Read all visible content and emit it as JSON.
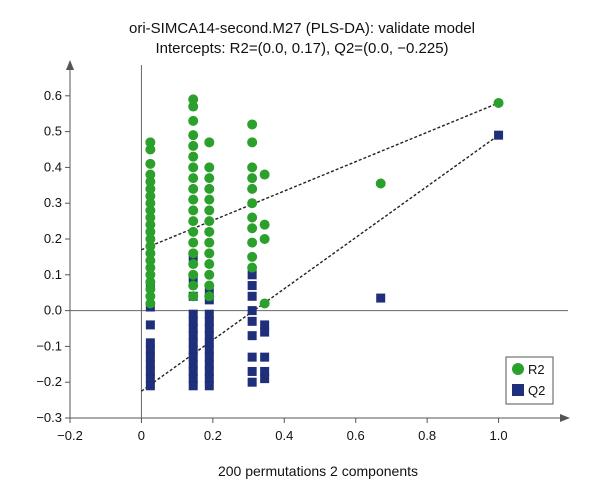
{
  "chart_data": {
    "type": "scatter",
    "title": "ori-SIMCA14-second.M27 (PLS-DA): validate model",
    "subtitle": "Intercepts: R2=(0.0, 0.17), Q2=(0.0, −0.225)",
    "xlabel": "200 permutations 2 components",
    "ylabel": "",
    "xlim": [
      -0.2,
      1.2
    ],
    "ylim": [
      -0.3,
      0.7
    ],
    "x_ticks": [
      -0.2,
      0,
      0.2,
      0.4,
      0.6,
      0.8,
      1.0
    ],
    "x_tick_labels": [
      "−0.2",
      "0",
      "0.2",
      "0.4",
      "0.6",
      "0.8",
      "1.0"
    ],
    "y_ticks": [
      -0.3,
      -0.2,
      -0.1,
      0.0,
      0.1,
      0.2,
      0.3,
      0.4,
      0.5,
      0.6
    ],
    "y_tick_labels": [
      "−0.3",
      "−0.2",
      "−0.1",
      "0.0",
      "0.1",
      "0.2",
      "0.3",
      "0.4",
      "0.5",
      "0.6"
    ],
    "legend_position": "bottom-right",
    "series": [
      {
        "name": "R2",
        "color": "#2ca02c",
        "marker": "circle",
        "points": [
          [
            0.025,
            0.47
          ],
          [
            0.025,
            0.45
          ],
          [
            0.025,
            0.41
          ],
          [
            0.025,
            0.38
          ],
          [
            0.025,
            0.36
          ],
          [
            0.025,
            0.34
          ],
          [
            0.025,
            0.32
          ],
          [
            0.025,
            0.3
          ],
          [
            0.025,
            0.28
          ],
          [
            0.025,
            0.26
          ],
          [
            0.025,
            0.24
          ],
          [
            0.025,
            0.22
          ],
          [
            0.025,
            0.2
          ],
          [
            0.025,
            0.18
          ],
          [
            0.025,
            0.16
          ],
          [
            0.025,
            0.14
          ],
          [
            0.025,
            0.12
          ],
          [
            0.025,
            0.1
          ],
          [
            0.025,
            0.08
          ],
          [
            0.025,
            0.06
          ],
          [
            0.025,
            0.04
          ],
          [
            0.025,
            0.02
          ],
          [
            0.145,
            0.59
          ],
          [
            0.145,
            0.57
          ],
          [
            0.145,
            0.53
          ],
          [
            0.145,
            0.49
          ],
          [
            0.145,
            0.46
          ],
          [
            0.145,
            0.43
          ],
          [
            0.145,
            0.4
          ],
          [
            0.145,
            0.37
          ],
          [
            0.145,
            0.34
          ],
          [
            0.145,
            0.31
          ],
          [
            0.145,
            0.28
          ],
          [
            0.145,
            0.25
          ],
          [
            0.145,
            0.22
          ],
          [
            0.145,
            0.19
          ],
          [
            0.145,
            0.16
          ],
          [
            0.145,
            0.13
          ],
          [
            0.145,
            0.1
          ],
          [
            0.145,
            0.07
          ],
          [
            0.145,
            0.04
          ],
          [
            0.19,
            0.47
          ],
          [
            0.19,
            0.4
          ],
          [
            0.19,
            0.37
          ],
          [
            0.19,
            0.34
          ],
          [
            0.19,
            0.31
          ],
          [
            0.19,
            0.28
          ],
          [
            0.19,
            0.25
          ],
          [
            0.19,
            0.22
          ],
          [
            0.19,
            0.19
          ],
          [
            0.19,
            0.16
          ],
          [
            0.19,
            0.13
          ],
          [
            0.19,
            0.1
          ],
          [
            0.19,
            0.07
          ],
          [
            0.19,
            0.04
          ],
          [
            0.31,
            0.52
          ],
          [
            0.31,
            0.47
          ],
          [
            0.31,
            0.4
          ],
          [
            0.31,
            0.37
          ],
          [
            0.31,
            0.34
          ],
          [
            0.31,
            0.3
          ],
          [
            0.31,
            0.26
          ],
          [
            0.31,
            0.23
          ],
          [
            0.31,
            0.19
          ],
          [
            0.31,
            0.15
          ],
          [
            0.31,
            0.12
          ],
          [
            0.345,
            0.38
          ],
          [
            0.345,
            0.24
          ],
          [
            0.345,
            0.2
          ],
          [
            0.345,
            0.02
          ],
          [
            0.67,
            0.355
          ],
          [
            1.0,
            0.58
          ]
        ]
      },
      {
        "name": "Q2",
        "color": "#1f2f7a",
        "marker": "square",
        "points": [
          [
            0.025,
            0.07
          ],
          [
            0.025,
            0.01
          ],
          [
            0.025,
            -0.04
          ],
          [
            0.025,
            -0.09
          ],
          [
            0.025,
            -0.11
          ],
          [
            0.025,
            -0.13
          ],
          [
            0.025,
            -0.15
          ],
          [
            0.025,
            -0.17
          ],
          [
            0.025,
            -0.19
          ],
          [
            0.025,
            -0.21
          ],
          [
            0.145,
            0.15
          ],
          [
            0.145,
            0.09
          ],
          [
            0.145,
            0.04
          ],
          [
            0.145,
            -0.01
          ],
          [
            0.145,
            -0.03
          ],
          [
            0.145,
            -0.05
          ],
          [
            0.145,
            -0.07
          ],
          [
            0.145,
            -0.09
          ],
          [
            0.145,
            -0.11
          ],
          [
            0.145,
            -0.13
          ],
          [
            0.145,
            -0.15
          ],
          [
            0.145,
            -0.17
          ],
          [
            0.145,
            -0.19
          ],
          [
            0.145,
            -0.21
          ],
          [
            0.19,
            0.05
          ],
          [
            0.19,
            0.03
          ],
          [
            0.19,
            -0.01
          ],
          [
            0.19,
            -0.03
          ],
          [
            0.19,
            -0.05
          ],
          [
            0.19,
            -0.07
          ],
          [
            0.19,
            -0.09
          ],
          [
            0.19,
            -0.11
          ],
          [
            0.19,
            -0.13
          ],
          [
            0.19,
            -0.15
          ],
          [
            0.19,
            -0.17
          ],
          [
            0.19,
            -0.19
          ],
          [
            0.19,
            -0.21
          ],
          [
            0.31,
            0.1
          ],
          [
            0.31,
            0.07
          ],
          [
            0.31,
            0.04
          ],
          [
            0.31,
            0.0
          ],
          [
            0.31,
            -0.03
          ],
          [
            0.31,
            -0.07
          ],
          [
            0.31,
            -0.13
          ],
          [
            0.31,
            -0.17
          ],
          [
            0.31,
            -0.2
          ],
          [
            0.345,
            -0.04
          ],
          [
            0.345,
            -0.06
          ],
          [
            0.345,
            -0.13
          ],
          [
            0.345,
            -0.17
          ],
          [
            0.345,
            -0.19
          ],
          [
            0.67,
            0.035
          ],
          [
            1.0,
            0.49
          ]
        ]
      }
    ],
    "regression_lines": [
      {
        "name": "R2 line",
        "from": [
          0.0,
          0.17
        ],
        "to": [
          1.0,
          0.58
        ]
      },
      {
        "name": "Q2 line",
        "from": [
          0.0,
          -0.225
        ],
        "to": [
          1.0,
          0.49
        ]
      }
    ]
  }
}
